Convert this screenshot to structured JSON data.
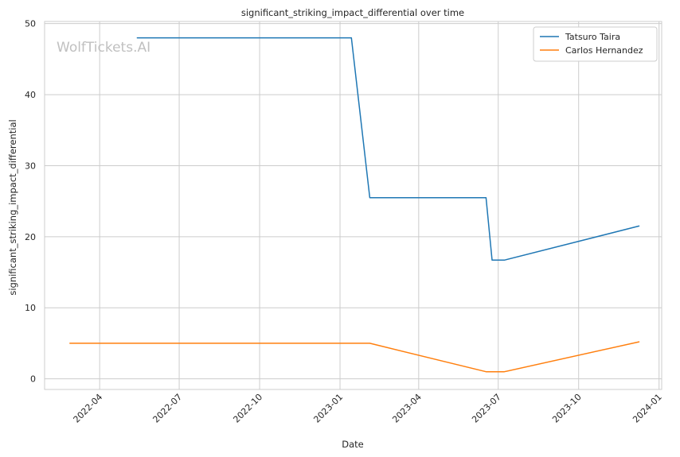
{
  "chart_data": {
    "type": "line",
    "title": "significant_striking_impact_differential over time",
    "xlabel": "Date",
    "ylabel": "significant_striking_impact_differential",
    "watermark": "WolfTickets.AI",
    "xlim": [
      "2022-01-28",
      "2024-01-04"
    ],
    "ylim": [
      -1.5,
      50.3
    ],
    "x_ticks": [
      "2022-04-01",
      "2022-07-01",
      "2022-10-01",
      "2023-01-01",
      "2023-04-01",
      "2023-07-01",
      "2023-10-01",
      "2024-01-01"
    ],
    "x_tick_labels": [
      "2022-04",
      "2022-07",
      "2022-10",
      "2023-01",
      "2023-04",
      "2023-07",
      "2023-10",
      "2024-01"
    ],
    "y_ticks": [
      0,
      10,
      20,
      30,
      40,
      50
    ],
    "y_tick_labels": [
      "0",
      "10",
      "20",
      "30",
      "40",
      "50"
    ],
    "grid": true,
    "legend_position": "top-right",
    "series": [
      {
        "name": "Tatsuro Taira",
        "color": "#1f77b4",
        "x": [
          "2022-05-14",
          "2023-01-14",
          "2023-02-04",
          "2023-06-17",
          "2023-06-24",
          "2023-07-08",
          "2023-12-09"
        ],
        "y": [
          48.0,
          48.0,
          25.5,
          25.5,
          16.7,
          16.7,
          21.5
        ]
      },
      {
        "name": "Carlos Hernandez",
        "color": "#ff7f0e",
        "x": [
          "2022-02-26",
          "2023-02-04",
          "2023-06-17",
          "2023-07-08",
          "2023-12-09"
        ],
        "y": [
          5.0,
          5.0,
          1.0,
          1.0,
          5.2
        ]
      }
    ]
  }
}
